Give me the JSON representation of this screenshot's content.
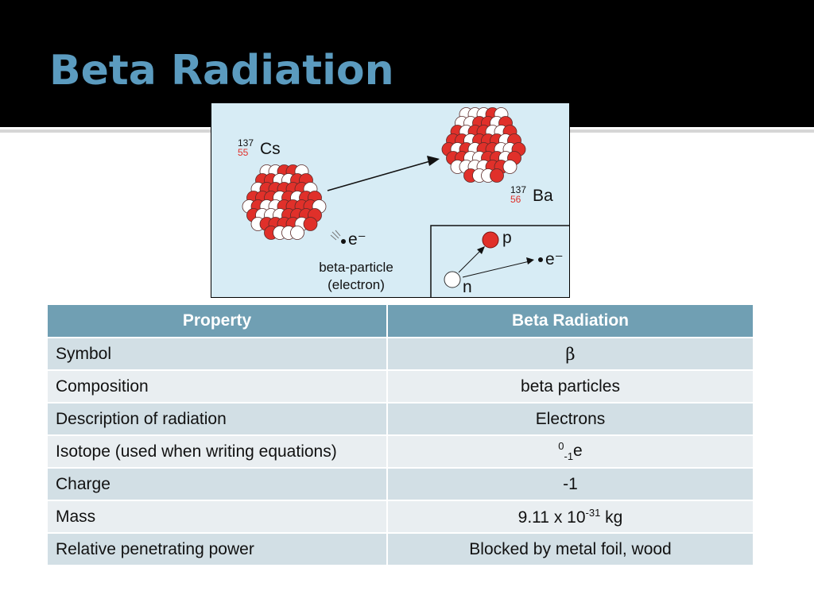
{
  "slide": {
    "title": "Beta Radiation"
  },
  "figure": {
    "parent": {
      "mass": "137",
      "atomic": "55",
      "symbol": "Cs"
    },
    "daughter": {
      "mass": "137",
      "atomic": "56",
      "symbol": "Ba"
    },
    "emitted_symbol": "e⁻",
    "caption_line1": "beta-particle",
    "caption_line2": "(electron)",
    "inset": {
      "proton": "p",
      "neutron": "n",
      "electron": "e⁻"
    },
    "colors": {
      "proton": "#e0302a",
      "neutron": "#ffffff",
      "background": "#d7ecf5"
    }
  },
  "table": {
    "headers": [
      "Property",
      "Beta Radiation"
    ],
    "rows": [
      {
        "property": "Symbol",
        "value": "β"
      },
      {
        "property": "Composition",
        "value": "beta particles"
      },
      {
        "property": "Description of radiation",
        "value": "Electrons"
      },
      {
        "property": "Isotope (used when writing equations)",
        "value_sup": "0",
        "value_sub": "-1",
        "value_base": "e"
      },
      {
        "property": "Charge",
        "value": "-1"
      },
      {
        "property": "Mass",
        "value_base": "9.11 x 10",
        "value_sup": "-31",
        "value_unit": " kg"
      },
      {
        "property": "Relative penetrating power",
        "value": "Blocked by metal foil, wood"
      }
    ],
    "colors": {
      "header": "#709fb3",
      "row_odd": "#d2dfe5",
      "row_even": "#e9eef1"
    }
  }
}
